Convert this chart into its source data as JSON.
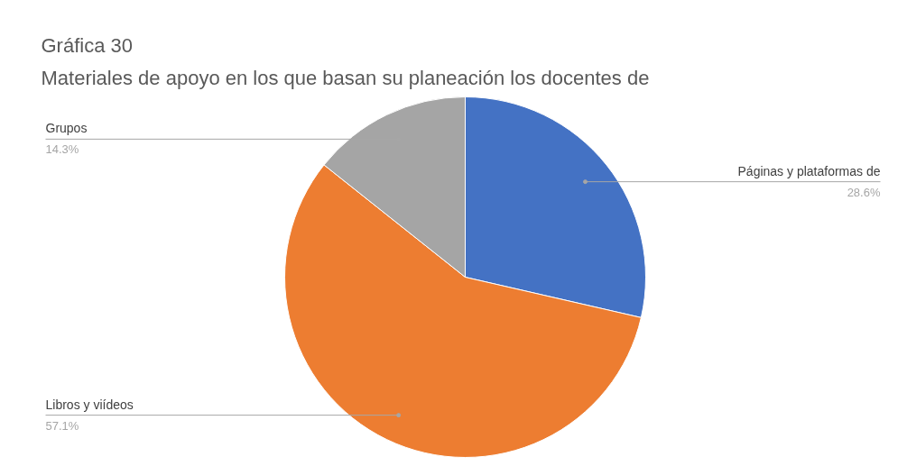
{
  "chart_data": {
    "type": "pie",
    "title": "Gráfica 30",
    "subtitle": "Materiales de apoyo en los que basan su planeación los docentes de",
    "categories": [
      "Páginas y plataformas de",
      "Libros y viídeos",
      "Grupos"
    ],
    "values": [
      28.6,
      57.1,
      14.3
    ],
    "colors": [
      "#4472c4",
      "#ed7d31",
      "#a5a5a5"
    ],
    "value_labels": [
      "28.6%",
      "57.1%",
      "14.3%"
    ]
  }
}
